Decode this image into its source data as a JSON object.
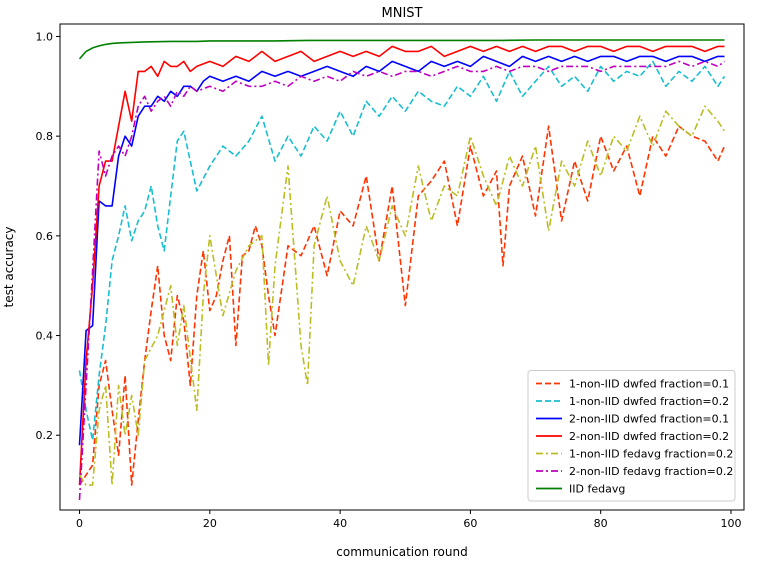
{
  "chart_data": {
    "type": "line",
    "title": "MNIST",
    "xlabel": "communication round",
    "ylabel": "test accuracy",
    "xlim": [
      -3,
      102
    ],
    "ylim": [
      0.05,
      1.025
    ],
    "xticks": [
      0,
      20,
      40,
      60,
      80,
      100
    ],
    "yticks": [
      0.2,
      0.4,
      0.6,
      0.8,
      1.0
    ],
    "ytick_labels": [
      "0.2",
      "0.4",
      "0.6",
      "0.8",
      "1.0"
    ],
    "legend_position": "lower-right",
    "series": [
      {
        "name": "1-non-IID dwfed fraction=0.1",
        "color": "#ff3300",
        "dash": "dashed",
        "x": [
          0,
          2,
          3,
          4,
          5,
          6,
          7,
          8,
          9,
          10,
          11,
          12,
          13,
          14,
          15,
          16,
          17,
          18,
          19,
          20,
          21,
          22,
          23,
          24,
          25,
          26,
          27,
          28,
          29,
          30,
          32,
          34,
          36,
          38,
          40,
          42,
          44,
          46,
          48,
          50,
          52,
          54,
          56,
          58,
          60,
          62,
          64,
          65,
          66,
          68,
          70,
          72,
          74,
          76,
          78,
          80,
          82,
          84,
          86,
          88,
          90,
          92,
          94,
          96,
          98,
          99
        ],
        "y": [
          0.1,
          0.14,
          0.3,
          0.35,
          0.25,
          0.16,
          0.32,
          0.1,
          0.23,
          0.35,
          0.45,
          0.54,
          0.4,
          0.35,
          0.48,
          0.43,
          0.3,
          0.48,
          0.57,
          0.45,
          0.48,
          0.55,
          0.6,
          0.38,
          0.56,
          0.57,
          0.62,
          0.58,
          0.48,
          0.4,
          0.58,
          0.56,
          0.62,
          0.52,
          0.65,
          0.62,
          0.72,
          0.55,
          0.7,
          0.46,
          0.68,
          0.71,
          0.75,
          0.62,
          0.78,
          0.68,
          0.73,
          0.54,
          0.7,
          0.76,
          0.64,
          0.82,
          0.63,
          0.75,
          0.67,
          0.8,
          0.73,
          0.78,
          0.68,
          0.8,
          0.76,
          0.82,
          0.8,
          0.79,
          0.75,
          0.78
        ]
      },
      {
        "name": "1-non-IID dwfed fraction=0.2",
        "color": "#17becf",
        "dash": "dashed",
        "x": [
          0,
          1,
          2,
          3,
          4,
          5,
          6,
          7,
          8,
          9,
          10,
          11,
          12,
          13,
          14,
          15,
          16,
          17,
          18,
          20,
          22,
          24,
          26,
          28,
          30,
          32,
          34,
          36,
          38,
          40,
          42,
          44,
          46,
          48,
          50,
          52,
          54,
          56,
          58,
          60,
          62,
          64,
          66,
          68,
          70,
          72,
          74,
          76,
          78,
          80,
          82,
          84,
          86,
          88,
          90,
          92,
          94,
          96,
          98,
          99
        ],
        "y": [
          0.33,
          0.25,
          0.19,
          0.32,
          0.42,
          0.55,
          0.6,
          0.66,
          0.59,
          0.63,
          0.65,
          0.7,
          0.62,
          0.57,
          0.68,
          0.79,
          0.81,
          0.75,
          0.69,
          0.74,
          0.78,
          0.76,
          0.79,
          0.84,
          0.75,
          0.8,
          0.76,
          0.82,
          0.79,
          0.85,
          0.8,
          0.87,
          0.84,
          0.88,
          0.85,
          0.89,
          0.87,
          0.86,
          0.9,
          0.88,
          0.92,
          0.87,
          0.93,
          0.88,
          0.91,
          0.94,
          0.9,
          0.92,
          0.89,
          0.94,
          0.91,
          0.93,
          0.92,
          0.95,
          0.9,
          0.93,
          0.91,
          0.94,
          0.9,
          0.92
        ]
      },
      {
        "name": "2-non-IID dwfed fraction=0.1",
        "color": "#0000ff",
        "dash": "solid",
        "x": [
          0,
          1,
          2,
          3,
          4,
          5,
          6,
          7,
          8,
          9,
          10,
          11,
          12,
          13,
          14,
          15,
          16,
          17,
          18,
          19,
          20,
          22,
          24,
          26,
          28,
          30,
          32,
          34,
          36,
          38,
          40,
          42,
          44,
          46,
          48,
          50,
          52,
          54,
          56,
          58,
          60,
          62,
          64,
          66,
          68,
          70,
          72,
          74,
          76,
          78,
          80,
          82,
          84,
          86,
          88,
          90,
          92,
          94,
          96,
          98,
          99
        ],
        "y": [
          0.18,
          0.41,
          0.42,
          0.67,
          0.66,
          0.66,
          0.76,
          0.8,
          0.78,
          0.84,
          0.86,
          0.86,
          0.88,
          0.87,
          0.89,
          0.88,
          0.9,
          0.9,
          0.89,
          0.91,
          0.92,
          0.91,
          0.92,
          0.91,
          0.93,
          0.92,
          0.93,
          0.92,
          0.93,
          0.94,
          0.93,
          0.92,
          0.94,
          0.93,
          0.95,
          0.94,
          0.93,
          0.95,
          0.94,
          0.95,
          0.94,
          0.96,
          0.95,
          0.94,
          0.96,
          0.95,
          0.96,
          0.95,
          0.96,
          0.95,
          0.96,
          0.96,
          0.95,
          0.96,
          0.96,
          0.95,
          0.96,
          0.96,
          0.95,
          0.96,
          0.96
        ]
      },
      {
        "name": "2-non-IID dwfed fraction=0.2",
        "color": "#ff0000",
        "dash": "solid",
        "x": [
          0,
          1,
          2,
          3,
          4,
          5,
          6,
          7,
          8,
          9,
          10,
          11,
          12,
          13,
          14,
          15,
          16,
          17,
          18,
          20,
          22,
          24,
          26,
          28,
          30,
          32,
          34,
          36,
          38,
          40,
          42,
          44,
          46,
          48,
          50,
          52,
          54,
          56,
          58,
          60,
          62,
          64,
          66,
          68,
          70,
          72,
          74,
          76,
          78,
          80,
          82,
          84,
          86,
          88,
          90,
          92,
          94,
          96,
          98,
          99
        ],
        "y": [
          0.1,
          0.35,
          0.5,
          0.7,
          0.75,
          0.75,
          0.82,
          0.89,
          0.83,
          0.93,
          0.93,
          0.94,
          0.92,
          0.95,
          0.94,
          0.94,
          0.95,
          0.93,
          0.94,
          0.95,
          0.94,
          0.96,
          0.95,
          0.97,
          0.95,
          0.96,
          0.97,
          0.95,
          0.96,
          0.97,
          0.96,
          0.97,
          0.96,
          0.98,
          0.97,
          0.97,
          0.98,
          0.96,
          0.97,
          0.98,
          0.97,
          0.98,
          0.97,
          0.98,
          0.97,
          0.98,
          0.98,
          0.97,
          0.98,
          0.98,
          0.97,
          0.98,
          0.98,
          0.97,
          0.98,
          0.98,
          0.98,
          0.97,
          0.98,
          0.98
        ]
      },
      {
        "name": "1-non-IID fedavg fraction=0.2",
        "color": "#bcbd22",
        "dash": "dashdot",
        "x": [
          0,
          1,
          2,
          3,
          4,
          5,
          6,
          7,
          8,
          9,
          10,
          12,
          14,
          15,
          16,
          18,
          19,
          20,
          22,
          24,
          26,
          28,
          29,
          30,
          32,
          34,
          35,
          36,
          38,
          40,
          42,
          44,
          46,
          48,
          50,
          52,
          54,
          56,
          58,
          60,
          62,
          64,
          66,
          68,
          70,
          72,
          74,
          76,
          78,
          80,
          82,
          84,
          86,
          88,
          90,
          92,
          94,
          96,
          98,
          99
        ],
        "y": [
          0.12,
          0.1,
          0.1,
          0.25,
          0.3,
          0.1,
          0.3,
          0.2,
          0.28,
          0.2,
          0.35,
          0.4,
          0.5,
          0.38,
          0.46,
          0.25,
          0.48,
          0.6,
          0.44,
          0.53,
          0.58,
          0.6,
          0.34,
          0.54,
          0.74,
          0.38,
          0.3,
          0.58,
          0.68,
          0.55,
          0.5,
          0.62,
          0.55,
          0.66,
          0.6,
          0.74,
          0.63,
          0.7,
          0.68,
          0.8,
          0.72,
          0.66,
          0.76,
          0.7,
          0.78,
          0.61,
          0.75,
          0.7,
          0.79,
          0.72,
          0.8,
          0.77,
          0.84,
          0.78,
          0.85,
          0.82,
          0.8,
          0.86,
          0.83,
          0.81
        ]
      },
      {
        "name": "2-non-IID fedavg fraction=0.2",
        "color": "#bf00bf",
        "dash": "dashdot",
        "x": [
          0,
          1,
          2,
          3,
          4,
          5,
          6,
          7,
          8,
          9,
          10,
          11,
          12,
          13,
          14,
          15,
          16,
          17,
          18,
          20,
          22,
          24,
          26,
          28,
          30,
          32,
          34,
          36,
          38,
          40,
          42,
          44,
          46,
          48,
          50,
          52,
          54,
          56,
          58,
          60,
          62,
          64,
          66,
          68,
          70,
          72,
          74,
          76,
          78,
          80,
          82,
          84,
          86,
          88,
          90,
          92,
          94,
          96,
          98,
          99
        ],
        "y": [
          0.07,
          0.3,
          0.53,
          0.77,
          0.72,
          0.76,
          0.78,
          0.76,
          0.8,
          0.86,
          0.88,
          0.85,
          0.87,
          0.88,
          0.86,
          0.89,
          0.88,
          0.9,
          0.89,
          0.9,
          0.89,
          0.91,
          0.9,
          0.9,
          0.91,
          0.9,
          0.92,
          0.91,
          0.92,
          0.91,
          0.93,
          0.92,
          0.93,
          0.92,
          0.93,
          0.93,
          0.92,
          0.93,
          0.94,
          0.93,
          0.93,
          0.94,
          0.93,
          0.94,
          0.94,
          0.93,
          0.94,
          0.94,
          0.94,
          0.93,
          0.94,
          0.94,
          0.94,
          0.94,
          0.94,
          0.95,
          0.94,
          0.95,
          0.94,
          0.95
        ]
      },
      {
        "name": "IID fedavg",
        "color": "#008000",
        "dash": "solid",
        "x": [
          0,
          1,
          2,
          3,
          4,
          5,
          6,
          8,
          10,
          14,
          18,
          20,
          25,
          30,
          35,
          40,
          45,
          50,
          55,
          60,
          65,
          70,
          75,
          80,
          85,
          90,
          95,
          99
        ],
        "y": [
          0.955,
          0.97,
          0.977,
          0.981,
          0.984,
          0.986,
          0.987,
          0.988,
          0.989,
          0.99,
          0.99,
          0.991,
          0.991,
          0.991,
          0.992,
          0.992,
          0.992,
          0.992,
          0.992,
          0.992,
          0.992,
          0.993,
          0.993,
          0.993,
          0.993,
          0.993,
          0.993,
          0.993
        ]
      }
    ]
  }
}
